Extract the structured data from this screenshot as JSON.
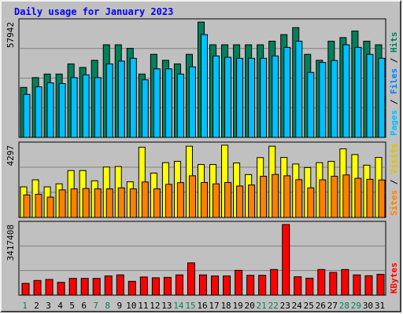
{
  "chart_data": {
    "type": "bar",
    "title": "Daily usage for January 2023",
    "days": [
      "1",
      "2",
      "3",
      "4",
      "5",
      "6",
      "7",
      "8",
      "9",
      "10",
      "11",
      "12",
      "13",
      "14",
      "15",
      "16",
      "17",
      "18",
      "19",
      "20",
      "21",
      "22",
      "23",
      "24",
      "25",
      "26",
      "27",
      "28",
      "29",
      "30",
      "31"
    ],
    "weekend_days": [
      1,
      7,
      8,
      14,
      15,
      21,
      22,
      28,
      29
    ],
    "panels": [
      {
        "id": "pages_files_hits",
        "ymax": 57942,
        "ymax_label": "57942",
        "labels": [
          "Pages",
          "Files",
          "Hits"
        ],
        "series": [
          {
            "name": "Hits",
            "color": "#00805c",
            "values": [
              25100,
              30000,
              31800,
              31800,
              36900,
              35100,
              38700,
              46500,
              46500,
              44700,
              31800,
              41700,
              38700,
              36900,
              41700,
              57900,
              46500,
              46500,
              46500,
              46500,
              46500,
              48300,
              51600,
              55100,
              41700,
              38700,
              48300,
              50100,
              53400,
              48300,
              46500
            ]
          },
          {
            "name": "Files",
            "color": "#00c0ff",
            "values": [
              21600,
              25400,
              27400,
              27000,
              30000,
              31400,
              30000,
              36900,
              38300,
              39700,
              28900,
              34400,
              34400,
              31800,
              35400,
              51600,
              40900,
              40200,
              39700,
              39700,
              39700,
              40900,
              45200,
              48300,
              32600,
              37600,
              38600,
              46500,
              45200,
              41700,
              39700
            ]
          },
          {
            "name": "Pages",
            "color": "#00c0ff",
            "values": [
              0,
              0,
              0,
              0,
              0,
              0,
              0,
              0,
              0,
              0,
              0,
              0,
              0,
              0,
              0,
              0,
              0,
              0,
              0,
              0,
              0,
              0,
              0,
              0,
              0,
              0,
              0,
              0,
              0,
              0,
              0
            ]
          }
        ]
      },
      {
        "id": "visits_sites",
        "ymax": 4297,
        "ymax_label": "4297",
        "labels": [
          "Sites",
          "Visits"
        ],
        "series": [
          {
            "name": "Visits",
            "color": "#ffff00",
            "values": [
              1820,
              2240,
              1820,
              2000,
              2790,
              2790,
              2180,
              3000,
              3030,
              2120,
              4180,
              2640,
              3260,
              3340,
              4240,
              3150,
              3150,
              4300,
              3240,
              2550,
              3560,
              4240,
              3570,
              3180,
              2970,
              3260,
              3340,
              4080,
              3740,
              3110,
              3570
            ]
          },
          {
            "name": "Sites",
            "color": "#ff8000",
            "values": [
              1340,
              1380,
              1210,
              1640,
              1700,
              1720,
              1700,
              1700,
              1760,
              1700,
              2110,
              1700,
              1970,
              2070,
              2480,
              2080,
              2000,
              2080,
              1870,
              1930,
              2450,
              2560,
              2480,
              2250,
              1760,
              2240,
              2450,
              2530,
              2330,
              2270,
              2230
            ]
          }
        ]
      },
      {
        "id": "kbytes",
        "ymax": 3417408,
        "ymax_label": "3417408",
        "labels": [
          "KBytes"
        ],
        "series": [
          {
            "name": "KBytes",
            "color": "#ff0000",
            "values": [
              570000,
              710000,
              760000,
              620000,
              810000,
              810000,
              810000,
              930000,
              980000,
              670000,
              880000,
              840000,
              860000,
              980000,
              1560000,
              980000,
              930000,
              930000,
              1200000,
              960000,
              960000,
              1240000,
              3417408,
              890000,
              820000,
              1240000,
              1100000,
              1240000,
              980000,
              940000,
              1010000
            ]
          }
        ]
      }
    ]
  }
}
